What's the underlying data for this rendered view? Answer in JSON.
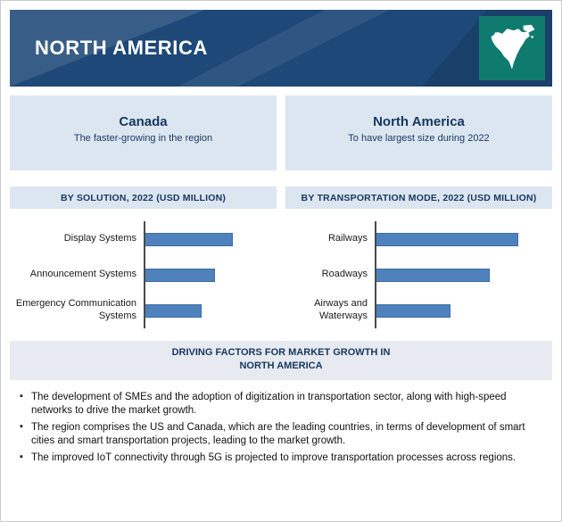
{
  "header": {
    "title": "NORTH AMERICA"
  },
  "panels": [
    {
      "title": "Canada",
      "subtitle": "The faster-growing in the region"
    },
    {
      "title": "North America",
      "subtitle": "To have largest size during 2022"
    }
  ],
  "chart_data": [
    {
      "type": "bar",
      "orientation": "horizontal",
      "title": "BY SOLUTION, 2022 (USD MILLION)",
      "categories": [
        "Display Systems",
        "Announcement Systems",
        "Emergency Communication Systems"
      ],
      "values": [
        97,
        77,
        63
      ],
      "xlim": [
        0,
        140
      ],
      "unit": "USD Million",
      "grid": false,
      "legend": false
    },
    {
      "type": "bar",
      "orientation": "horizontal",
      "title": "BY TRANSPORTATION MODE, 2022 (USD MILLION)",
      "categories": [
        "Railways",
        "Roadways",
        "Airways and Waterways"
      ],
      "values": [
        158,
        126,
        83
      ],
      "xlim": [
        0,
        190
      ],
      "unit": "USD Million",
      "grid": false,
      "legend": false
    }
  ],
  "driving_factors": {
    "title_line1": "DRIVING FACTORS FOR MARKET GROWTH IN",
    "title_line2": "NORTH AMERICA",
    "bullets": [
      "The development of SMEs and the adoption of digitization in transportation sector, along with high-speed networks to drive the market growth.",
      "The region comprises the US and Canada, which are the leading countries, in terms of development of smart cities and smart transportation projects, leading to the market growth.",
      "The improved IoT connectivity through 5G is projected to improve transportation processes across regions."
    ]
  },
  "colors": {
    "header_bg": "#1D4877",
    "panel_bg": "#DCE6F1",
    "section_header_bg": "#DCE6F1",
    "band_bg": "#E7EAF0",
    "bar_fill": "#4F81BD",
    "bar_edge": "#3C6EA5",
    "navy_text": "#17375E",
    "map_bg": "#0F7B6F",
    "axis_line": "#4A4A4A"
  }
}
